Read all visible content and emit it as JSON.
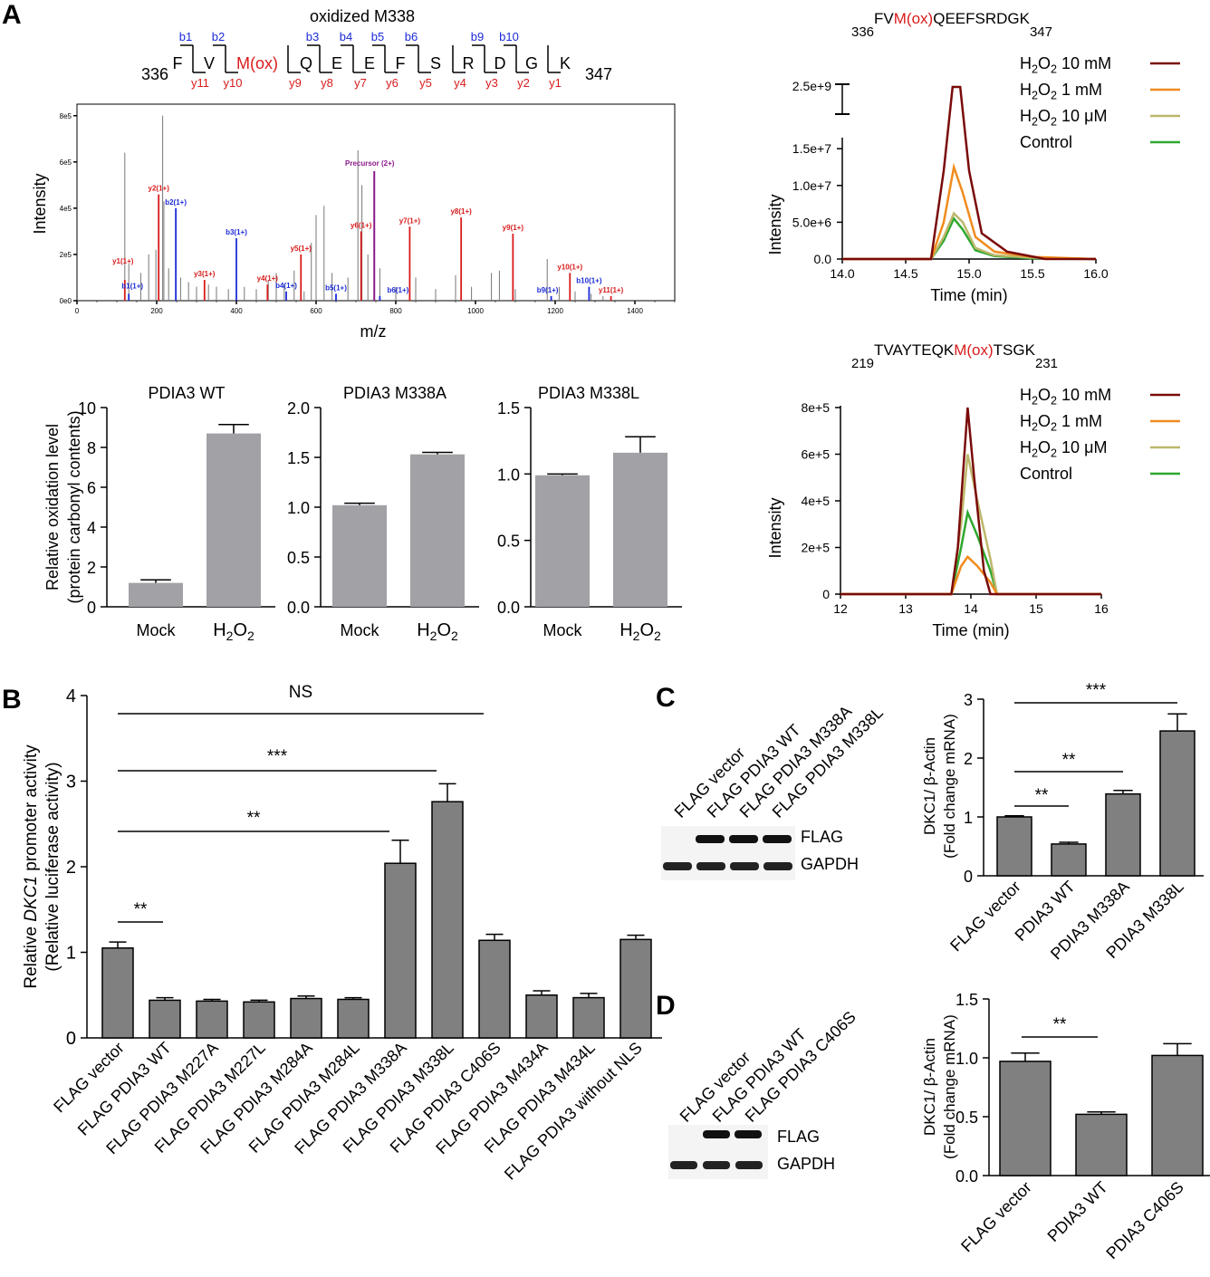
{
  "panel_letters": [
    "A",
    "B",
    "C",
    "D"
  ],
  "colors": {
    "bar": "#a1a1a6",
    "bar_dark": "#808080",
    "red": "#d81b1b",
    "blue": "#1b2bd8",
    "purple": "#8b1a8b",
    "h10mM": "#7a0a0a",
    "h1mM": "#f08c1e",
    "h10uM": "#bdb76b",
    "control": "#2ea82e"
  },
  "spectrum": {
    "peptide_title": "oxidized M338",
    "residues": [
      "F",
      "V",
      "M(ox)",
      "Q",
      "E",
      "E",
      "F",
      "S",
      "R",
      "D",
      "G",
      "K"
    ],
    "start": "336",
    "end": "347",
    "b_labels": [
      "b1",
      "b2",
      "b3",
      "b4",
      "b5",
      "b6",
      "b9",
      "b10"
    ],
    "y_labels": [
      "y11",
      "y10",
      "y9",
      "y8",
      "y7",
      "y6",
      "y5",
      "y4",
      "y3",
      "y2",
      "y1"
    ],
    "xlabel": "m/z",
    "ylabel": "Intensity",
    "yticks": [
      "0e0",
      "2e5",
      "4e5",
      "6e5",
      "8e5"
    ],
    "xticks": [
      "0",
      "200",
      "400",
      "600",
      "800",
      "1000",
      "1200",
      "1400"
    ],
    "precursor": "Precursor (2+)",
    "ion_labels": [
      "y1(1+)",
      "b1(1+)",
      "y2(1+)",
      "b2(1+)",
      "y3(1+)",
      "b3(1+)",
      "y4(1+)",
      "b4(1+)",
      "y5(1+)",
      "b5(1+)",
      "y6(1+)",
      "b6(1+)",
      "y7(1+)",
      "y8(1+)",
      "y9(1+)",
      "b9(1+)",
      "y10(1+)",
      "b10(1+)",
      "y11(1+)"
    ]
  },
  "xic_top": {
    "seq_start": "336",
    "seq_pre": "FV",
    "seq_ox": "M(ox)",
    "seq_post": "QEEFSRDGK",
    "seq_end": "347",
    "legend": [
      "H2O2 10 mM",
      "H2O2 1 mM",
      "H2O2 10 μM",
      "Control"
    ],
    "ylabel": "Intensity",
    "xlabel": "Time (min)",
    "yticks": [
      "0.0",
      "5.0e+6",
      "1.0e+7",
      "1.5e+7"
    ],
    "ybreak": "2.5e+9",
    "xticks": [
      "14.0",
      "14.5",
      "15.0",
      "15.5",
      "16.0"
    ]
  },
  "xic_bottom": {
    "seq_start": "219",
    "seq_pre": "TVAYTEQK",
    "seq_ox": "M(ox)",
    "seq_post": "TSGK",
    "seq_end": "231",
    "legend": [
      "H2O2 10 mM",
      "H2O2 1 mM",
      "H2O2 10 μM",
      "Control"
    ],
    "ylabel": "Intensity",
    "xlabel": "Time (min)",
    "yticks": [
      "0",
      "2e+5",
      "4e+5",
      "6e+5",
      "8e+5"
    ],
    "xticks": [
      "12",
      "13",
      "14",
      "15",
      "16"
    ]
  },
  "oxidation": {
    "ylabel1": "Relative oxidation level",
    "ylabel2": "(protein carbonyl contents)",
    "categories": [
      "Mock",
      "H2O2"
    ],
    "panels": [
      {
        "title": "PDIA3 WT",
        "yticks": [
          "0",
          "2",
          "4",
          "6",
          "8",
          "10"
        ]
      },
      {
        "title": "PDIA3 M338A",
        "yticks": [
          "0.0",
          "0.5",
          "1.0",
          "1.5",
          "2.0"
        ]
      },
      {
        "title": "PDIA3 M338L",
        "yticks": [
          "0.0",
          "0.5",
          "1.0",
          "1.5"
        ]
      }
    ]
  },
  "promoter": {
    "ylabel1_pre": "Relative ",
    "ylabel1_gene": "DKC1",
    "ylabel1_post": " promoter activity",
    "ylabel2": "(Relative luciferase activity)",
    "yticks": [
      "0",
      "1",
      "2",
      "3",
      "4"
    ],
    "sig": [
      "NS",
      "***",
      "**",
      "**"
    ]
  },
  "mrna_c": {
    "ylabel1": "DKC1/ β-Actin",
    "ylabel2": "(Fold change mRNA)",
    "yticks": [
      "0",
      "1",
      "2",
      "3"
    ],
    "sig": [
      "***",
      "**",
      "**"
    ],
    "blot_lanes": [
      "FLAG vector",
      "FLAG PDIA3 WT",
      "FLAG PDIA3 M338A",
      "FLAG PDIA3 M338L"
    ],
    "blot_rows": [
      "FLAG",
      "GAPDH"
    ]
  },
  "mrna_d": {
    "ylabel1": "DKC1/ β-Actin",
    "ylabel2": "(Fold change mRNA)",
    "yticks": [
      "0.0",
      "0.5",
      "1.0",
      "1.5"
    ],
    "sig": [
      "**"
    ],
    "blot_lanes": [
      "FLAG vector",
      "FLAG PDIA3 WT",
      "FLAG PDIA3 C406S"
    ],
    "blot_rows": [
      "FLAG",
      "GAPDH"
    ]
  },
  "chart_data": [
    {
      "type": "bar",
      "title": "PDIA3 WT",
      "categories": [
        "Mock",
        "H2O2"
      ],
      "values": [
        1.2,
        8.7
      ],
      "errors": [
        0.15,
        0.45
      ],
      "ylim": [
        0,
        10
      ]
    },
    {
      "type": "bar",
      "title": "PDIA3 M338A",
      "categories": [
        "Mock",
        "H2O2"
      ],
      "values": [
        1.02,
        1.53
      ],
      "errors": [
        0.02,
        0.02
      ],
      "ylim": [
        0,
        2
      ]
    },
    {
      "type": "bar",
      "title": "PDIA3 M338L",
      "categories": [
        "Mock",
        "H2O2"
      ],
      "values": [
        0.99,
        1.16
      ],
      "errors": [
        0.01,
        0.12
      ],
      "ylim": [
        0,
        1.5
      ]
    },
    {
      "type": "bar",
      "categories": [
        "FLAG vector",
        "FLAG PDIA3 WT",
        "FLAG PDIA3 M227A",
        "FLAG PDIA3 M227L",
        "FLAG PDIA3 M284A",
        "FLAG PDIA3 M284L",
        "FLAG PDIA3 M338A",
        "FLAG PDIA3 M338L",
        "FLAG PDIA3 C406S",
        "FLAG PDIA3 M434A",
        "FLAG PDIA3 M434L",
        "FLAG PDIA3 without NLS"
      ],
      "values": [
        1.05,
        0.44,
        0.43,
        0.42,
        0.46,
        0.45,
        2.04,
        2.76,
        1.14,
        0.5,
        0.47,
        1.15
      ],
      "errors": [
        0.07,
        0.03,
        0.02,
        0.02,
        0.03,
        0.02,
        0.27,
        0.21,
        0.07,
        0.05,
        0.05,
        0.05
      ],
      "ylim": [
        0,
        4
      ]
    },
    {
      "type": "bar",
      "categories": [
        "FLAG vector",
        "PDIA3 WT",
        "PDIA3 M338A",
        "PDIA3 M338L"
      ],
      "values": [
        1.0,
        0.54,
        1.39,
        2.46
      ],
      "errors": [
        0.02,
        0.03,
        0.06,
        0.29
      ],
      "ylim": [
        0,
        3
      ]
    },
    {
      "type": "bar",
      "categories": [
        "FLAG vector",
        "PDIA3 WT",
        "PDIA3 C406S"
      ],
      "values": [
        0.97,
        0.52,
        1.02
      ],
      "errors": [
        0.07,
        0.02,
        0.1
      ],
      "ylim": [
        0,
        1.5
      ]
    },
    {
      "type": "line",
      "xlabel": "Time (min)",
      "ylabel": "Intensity",
      "xlim": [
        14,
        16
      ],
      "series": [
        {
          "name": "H2O2 10 mM",
          "x": [
            14.0,
            14.7,
            14.8,
            14.87,
            14.9,
            14.93,
            15.0,
            15.1,
            15.3,
            15.6,
            16.0
          ],
          "y": [
            0,
            0,
            12000000.0,
            18000000.0,
            2500000000.0,
            18000000.0,
            12000000.0,
            3500000.0,
            1000000.0,
            0,
            0
          ]
        },
        {
          "name": "H2O2 1 mM",
          "x": [
            14.0,
            14.7,
            14.8,
            14.88,
            14.95,
            15.05,
            15.2,
            15.5,
            16.0
          ],
          "y": [
            0,
            0,
            5000000.0,
            12500000.0,
            9000000.0,
            3000000.0,
            1000000.0,
            300000.0,
            0
          ]
        },
        {
          "name": "H2O2 10 μM",
          "x": [
            14.0,
            14.7,
            14.8,
            14.88,
            14.95,
            15.05,
            15.2,
            15.5,
            16.0
          ],
          "y": [
            0,
            0,
            3000000.0,
            6200000.0,
            5000000.0,
            1500000.0,
            500000.0,
            200000.0,
            0
          ]
        },
        {
          "name": "Control",
          "x": [
            14.0,
            14.7,
            14.8,
            14.88,
            14.95,
            15.05,
            15.2,
            15.5,
            16.0
          ],
          "y": [
            0,
            0,
            2500000.0,
            5500000.0,
            4000000.0,
            1200000.0,
            400000.0,
            100000.0,
            0
          ]
        }
      ]
    },
    {
      "type": "line",
      "xlabel": "Time (min)",
      "ylabel": "Intensity",
      "xlim": [
        12,
        16
      ],
      "series": [
        {
          "name": "H2O2 10 mM",
          "x": [
            12,
            13.7,
            13.8,
            13.9,
            13.95,
            14.05,
            14.2,
            14.3,
            16
          ],
          "y": [
            0,
            0,
            200000.0,
            600000.0,
            800000.0,
            500000.0,
            100000.0,
            0,
            0
          ]
        },
        {
          "name": "H2O2 1 mM",
          "x": [
            12,
            13.7,
            13.85,
            13.95,
            14.1,
            14.3,
            14.4,
            16
          ],
          "y": [
            0,
            0,
            120000.0,
            160000.0,
            120000.0,
            50000.0,
            0,
            0
          ]
        },
        {
          "name": "H2O2 10 μM",
          "x": [
            12,
            13.7,
            13.85,
            13.95,
            14.1,
            14.3,
            14.4,
            16
          ],
          "y": [
            0,
            0,
            300000.0,
            600000.0,
            400000.0,
            150000.0,
            0,
            0
          ]
        },
        {
          "name": "Control",
          "x": [
            12,
            13.7,
            13.85,
            13.95,
            14.1,
            14.3,
            14.4,
            16
          ],
          "y": [
            0,
            0,
            200000.0,
            350000.0,
            250000.0,
            100000.0,
            0,
            0
          ]
        }
      ]
    }
  ]
}
